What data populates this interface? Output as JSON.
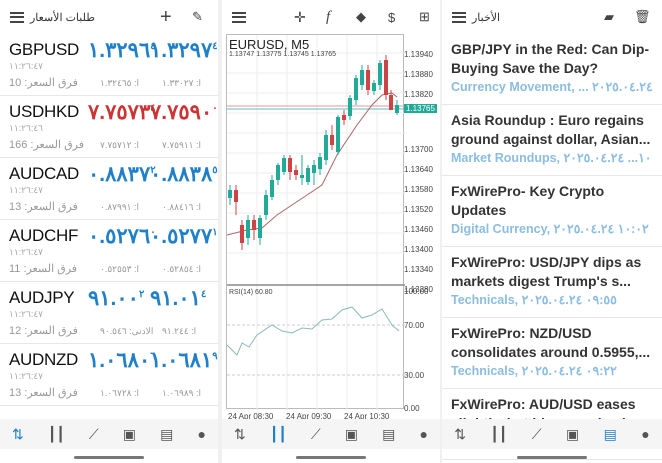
{
  "quotes_panel": {
    "title": "طلبات الأسعار",
    "icons": [
      "menu-icon",
      "plus-icon",
      "pencil-icon"
    ],
    "rows": [
      {
        "symbol": "GBPUSD",
        "time": "١١:٢٦:٤٧",
        "spread": "فرق السعر: 10",
        "bid": "١.٣٢٩٦",
        "bid_sup": "٤",
        "ask": "١.٣٢٩٧",
        "ask_sup": "٤",
        "low": "ا: ١.٣٢٤٦٥",
        "high": "ا: ١.٣٣٠٢٧",
        "color": "blue"
      },
      {
        "symbol": "USDHKD",
        "time": "١١:٢٦:٤٦",
        "spread": "فرق السعر: 166",
        "bid": "٧.٧٥٧٣",
        "bid_sup": "٤",
        "ask": "٧.٧٥٩٠",
        "ask_sup": "٠",
        "low": "ا: ٧.٧٥٧١٢",
        "high": "ا: ٧.٧٥٩١١",
        "color": "red"
      },
      {
        "symbol": "AUDCAD",
        "time": "١١:٢٦:٤٧",
        "spread": "فرق السعر: 13",
        "bid": "٠.٨٨٣٧",
        "bid_sup": "٢",
        "ask": "٠.٨٨٣٨",
        "ask_sup": "٥",
        "low": "ا: ٠.٨٧٩٩١",
        "high": "ا: ٠.٨٨٤١٦",
        "color": "blue"
      },
      {
        "symbol": "AUDCHF",
        "time": "١١:٢٦:٤٧",
        "spread": "فرق السعر: 11",
        "bid": "٠.٥٢٧٦",
        "bid_sup": "٠",
        "ask": "٠.٥٢٧٧",
        "ask_sup": "١",
        "low": "ا: ٠.٥٢٥٥٣",
        "high": "ا: ٠.٥٢٨٥٤",
        "color": "blue"
      },
      {
        "symbol": "AUDJPY",
        "time": "١١:٢٦:٤٧",
        "spread": "فرق السعر: 12",
        "bid": "٩١.٠٠",
        "bid_sup": "٢",
        "ask": "٩١.٠١",
        "ask_sup": "٤",
        "low": "الادنى: ٩٠.٥٤٦",
        "high": "ا: ٩١.٢٤٤",
        "color": "blue"
      },
      {
        "symbol": "AUDNZD",
        "time": "١١:٢٦:٤٧",
        "spread": "فرق السعر: 13",
        "bid": "١.٠٦٨٠",
        "bid_sup": "٦",
        "ask": "١.٠٦٨١",
        "ask_sup": "٩",
        "low": "ا: ١.٠٦٧٢٨",
        "high": "ا: ١.٠٦٩٨٩",
        "color": "blue"
      }
    ]
  },
  "chart_panel": {
    "symbol": "EURUSD, M5",
    "ohlc": "1.13747 1.13775 1.13745 1.13765",
    "current_price": "1.13765",
    "price_axis": [
      "1.13940",
      "1.13880",
      "1.13820",
      "1.13700",
      "1.13640",
      "1.13580",
      "1.13520",
      "1.13460",
      "1.13400",
      "1.13340",
      "1.13280"
    ],
    "rsi_label": "RSI(14) 60.80",
    "rsi_axis": [
      "100.00",
      "70.00",
      "30.00",
      "0.00"
    ],
    "time_axis": [
      "24 Apr 08:30",
      "24 Apr 09:30",
      "24 Apr 10:30"
    ],
    "toolbar_icons": [
      "menu-icon",
      "crosshair-icon",
      "function-icon",
      "objects-icon",
      "trade-icon",
      "new-order-icon"
    ]
  },
  "news_panel": {
    "title": "الأخبار",
    "items": [
      {
        "headline": "GBP/JPY in the Red: Can Dip-Buying Save the Day?",
        "meta": "Currency Movement, ... ٢٠٢٥.٠٤.٢٤"
      },
      {
        "headline": "Asia Roundup : Euro regains ground  against dollar, Asian...",
        "meta": "Market Roundups, ١٠... ٢٠٢٥.٠٤.٢٤"
      },
      {
        "headline": "FxWirePro- Key Crypto Updates",
        "meta": "Digital Currency, ١٠:٠٢ ٢٠٢٥.٠٤.٢٤"
      },
      {
        "headline": "FxWirePro: USD/JPY dips as markets digest Trump's s...",
        "meta": "Technicals, ٠٩:٥٥ ٢٠٢٥.٠٤.٢٤"
      },
      {
        "headline": "FxWirePro:  NZD/USD consolidates around 0.5955,...",
        "meta": "Technicals, ٠٩:٢٢ ٢٠٢٥.٠٤.٢٤"
      },
      {
        "headline": "FxWirePro: AUD/USD eases slightly, but bias remains bu",
        "meta": ""
      }
    ]
  },
  "bottom_nav": [
    "quotes-icon",
    "chart-icon",
    "trade-icon",
    "history-icon",
    "news-icon",
    "chat-icon"
  ]
}
